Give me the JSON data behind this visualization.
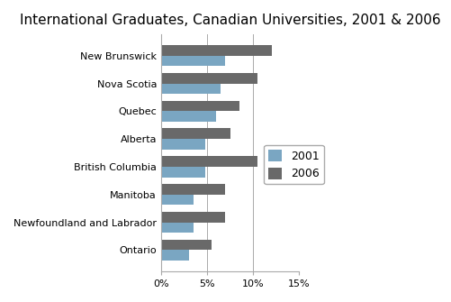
{
  "title": "International Graduates, Canadian Universities, 2001 & 2006",
  "categories": [
    "New Brunswick",
    "Nova Scotia",
    "Quebec",
    "Alberta",
    "British Columbia",
    "Manitoba",
    "Newfoundland and Labrador",
    "Ontario"
  ],
  "values_2001": [
    7.0,
    6.5,
    6.0,
    4.8,
    4.8,
    3.5,
    3.5,
    3.0
  ],
  "values_2006": [
    12.0,
    10.5,
    8.5,
    7.5,
    10.5,
    7.0,
    7.0,
    5.5
  ],
  "color_2001": "#7aa6c2",
  "color_2006": "#696969",
  "legend_labels": [
    "2001",
    "2006"
  ],
  "xlim": [
    0,
    15
  ],
  "xtick_values": [
    0,
    5,
    10,
    15
  ],
  "xtick_labels": [
    "0%",
    "5%",
    "10%",
    "15%"
  ],
  "background_color": "#ffffff",
  "title_fontsize": 11,
  "bar_height": 0.38
}
